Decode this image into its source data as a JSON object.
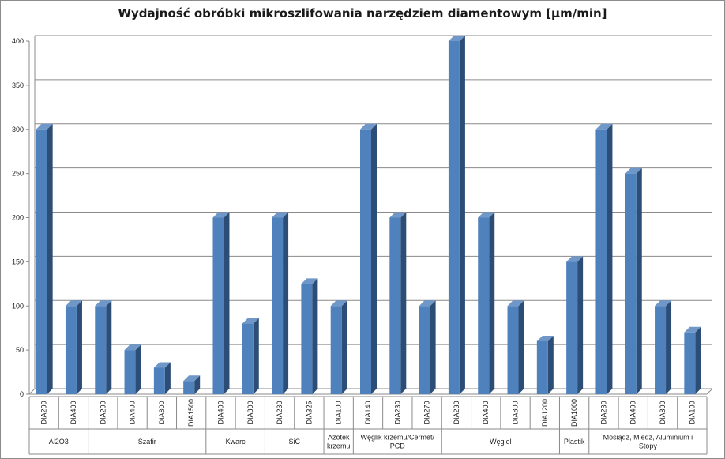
{
  "chart_data": {
    "type": "bar",
    "title": "Wydajność obróbki mikroszlifowania narzędziem diamentowym [µm/min]",
    "xlabel": "",
    "ylabel": "",
    "ylim": [
      0,
      400
    ],
    "yticks": [
      0,
      50,
      100,
      150,
      200,
      250,
      300,
      350,
      400
    ],
    "grid": true,
    "bar_color": "#4f81bd",
    "groups": [
      {
        "name": "Al2O3",
        "categories": [
          "DIA200",
          "DIA400"
        ],
        "values": [
          300,
          100
        ]
      },
      {
        "name": "Szafir",
        "categories": [
          "DIA200",
          "DIA400",
          "DIA800",
          "DIA1500"
        ],
        "values": [
          100,
          50,
          30,
          15
        ]
      },
      {
        "name": "Kwarc",
        "categories": [
          "DIA400",
          "DIA800"
        ],
        "values": [
          200,
          80
        ]
      },
      {
        "name": "SiC",
        "categories": [
          "DIA230",
          "DIA325"
        ],
        "values": [
          200,
          125
        ]
      },
      {
        "name": "Azotek krzemu",
        "categories": [
          "DIA100"
        ],
        "values": [
          100
        ]
      },
      {
        "name": "Węglik krzemu/Cermet/ PCD",
        "categories": [
          "DIA140",
          "DIA230",
          "DIA270"
        ],
        "values": [
          300,
          200,
          100
        ]
      },
      {
        "name": "Węgiel",
        "categories": [
          "DIA230",
          "DIA400",
          "DIA800",
          "DIA1200"
        ],
        "values": [
          400,
          200,
          100,
          60
        ]
      },
      {
        "name": "Plastik",
        "categories": [
          "DIA1000"
        ],
        "values": [
          150
        ]
      },
      {
        "name": "Mosiądz, Miedź, Aluminium i Stopy",
        "categories": [
          "DIA230",
          "DIA400",
          "DIA800",
          "DIA100"
        ],
        "values": [
          300,
          250,
          100,
          70
        ]
      }
    ]
  }
}
